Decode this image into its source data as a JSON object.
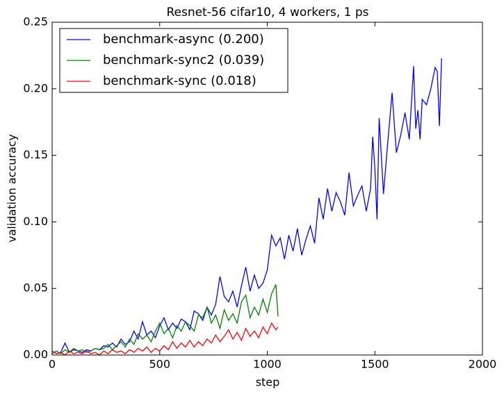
{
  "chart_data": {
    "type": "line",
    "title": "Resnet-56 cifar10, 4 workers, 1 ps",
    "x_label": "step",
    "y_label": "validation accuracy",
    "xlim": [
      0,
      2000
    ],
    "xticks": [
      0,
      500,
      1000,
      1500,
      2000
    ],
    "ylim": [
      0,
      0.25
    ],
    "yticks": [
      {
        "value": 0,
        "label": "0.00"
      },
      0.05,
      {
        "value": 0.1,
        "label": "0.10"
      },
      0.15,
      {
        "value": 0.2,
        "label": "0.20"
      },
      0.25
    ],
    "grid": false,
    "legend": "upper left",
    "series": [
      {
        "name": "benchmark-async (0.200)",
        "color": "#0000ff",
        "x": [
          0,
          20,
          40,
          60,
          80,
          100,
          120,
          140,
          160,
          180,
          200,
          220,
          240,
          260,
          280,
          300,
          320,
          340,
          360,
          380,
          400,
          420,
          440,
          460,
          480,
          500,
          520,
          540,
          560,
          580,
          600,
          620,
          640,
          660,
          680,
          700,
          720,
          740,
          760,
          780,
          800,
          820,
          840,
          860,
          880,
          900,
          920,
          940,
          960,
          980,
          1000,
          1020,
          1040,
          1060,
          1080,
          1100,
          1120,
          1140,
          1160,
          1180,
          1200,
          1220,
          1240,
          1260,
          1280,
          1300,
          1320,
          1340,
          1360,
          1380,
          1400,
          1420,
          1440,
          1460,
          1480,
          1490,
          1500,
          1510,
          1520,
          1540,
          1560,
          1580,
          1600,
          1620,
          1640,
          1660,
          1680,
          1690,
          1700,
          1710,
          1720,
          1740,
          1760,
          1780,
          1790,
          1800,
          1810
        ],
        "values": [
          0.003,
          0.001,
          0.002,
          0.009,
          0.002,
          0.004,
          0.003,
          0.002,
          0.004,
          0.003,
          0.005,
          0.004,
          0.007,
          0.006,
          0.009,
          0.006,
          0.012,
          0.008,
          0.01,
          0.018,
          0.012,
          0.025,
          0.015,
          0.018,
          0.013,
          0.022,
          0.028,
          0.019,
          0.024,
          0.02,
          0.027,
          0.025,
          0.019,
          0.033,
          0.031,
          0.026,
          0.036,
          0.03,
          0.038,
          0.059,
          0.044,
          0.04,
          0.048,
          0.036,
          0.052,
          0.066,
          0.048,
          0.06,
          0.05,
          0.054,
          0.064,
          0.09,
          0.082,
          0.088,
          0.072,
          0.09,
          0.078,
          0.095,
          0.075,
          0.087,
          0.097,
          0.084,
          0.118,
          0.102,
          0.125,
          0.108,
          0.122,
          0.115,
          0.105,
          0.137,
          0.112,
          0.12,
          0.127,
          0.108,
          0.125,
          0.164,
          0.14,
          0.102,
          0.178,
          0.121,
          0.16,
          0.197,
          0.152,
          0.165,
          0.182,
          0.162,
          0.217,
          0.17,
          0.184,
          0.162,
          0.192,
          0.188,
          0.2,
          0.216,
          0.213,
          0.172,
          0.223
        ]
      },
      {
        "name": "benchmark-sync2 (0.039)",
        "color": "#008000",
        "x": [
          0,
          20,
          40,
          60,
          80,
          100,
          120,
          140,
          160,
          180,
          200,
          220,
          240,
          260,
          280,
          300,
          320,
          340,
          360,
          380,
          400,
          420,
          440,
          460,
          480,
          500,
          520,
          540,
          560,
          580,
          600,
          620,
          640,
          660,
          680,
          700,
          720,
          740,
          760,
          780,
          800,
          820,
          840,
          860,
          880,
          900,
          920,
          940,
          960,
          980,
          1000,
          1020,
          1040,
          1050
        ],
        "values": [
          0.001,
          0.003,
          0.001,
          0.004,
          0.002,
          0.005,
          0.003,
          0.004,
          0.002,
          0.003,
          0.005,
          0.004,
          0.005,
          0.008,
          0.004,
          0.007,
          0.01,
          0.006,
          0.012,
          0.008,
          0.016,
          0.012,
          0.015,
          0.01,
          0.018,
          0.024,
          0.016,
          0.02,
          0.013,
          0.022,
          0.018,
          0.025,
          0.022,
          0.018,
          0.03,
          0.028,
          0.036,
          0.024,
          0.03,
          0.02,
          0.034,
          0.026,
          0.031,
          0.024,
          0.04,
          0.045,
          0.028,
          0.036,
          0.03,
          0.042,
          0.032,
          0.046,
          0.053,
          0.029
        ]
      },
      {
        "name": "benchmark-sync (0.018)",
        "color": "#ff0000",
        "x": [
          0,
          20,
          40,
          60,
          80,
          100,
          120,
          140,
          160,
          180,
          200,
          220,
          240,
          260,
          280,
          300,
          320,
          340,
          360,
          380,
          400,
          420,
          440,
          460,
          480,
          500,
          520,
          540,
          560,
          580,
          600,
          620,
          640,
          660,
          680,
          700,
          720,
          740,
          760,
          780,
          800,
          820,
          840,
          860,
          880,
          900,
          920,
          940,
          960,
          980,
          1000,
          1020,
          1040,
          1050
        ],
        "values": [
          0.003,
          0.001,
          0.002,
          0,
          0.003,
          0.001,
          0.002,
          0.001,
          0.003,
          0.001,
          0.002,
          0,
          0.003,
          0.001,
          0.004,
          0.002,
          0.003,
          0.001,
          0.004,
          0.002,
          0.005,
          0.003,
          0.006,
          0.002,
          0.005,
          0.003,
          0.007,
          0.004,
          0.01,
          0.005,
          0.009,
          0.006,
          0.011,
          0.006,
          0.01,
          0.007,
          0.012,
          0.009,
          0.015,
          0.01,
          0.014,
          0.019,
          0.012,
          0.017,
          0.011,
          0.02,
          0.014,
          0.018,
          0.013,
          0.021,
          0.016,
          0.024,
          0.019,
          0.021
        ]
      }
    ]
  }
}
